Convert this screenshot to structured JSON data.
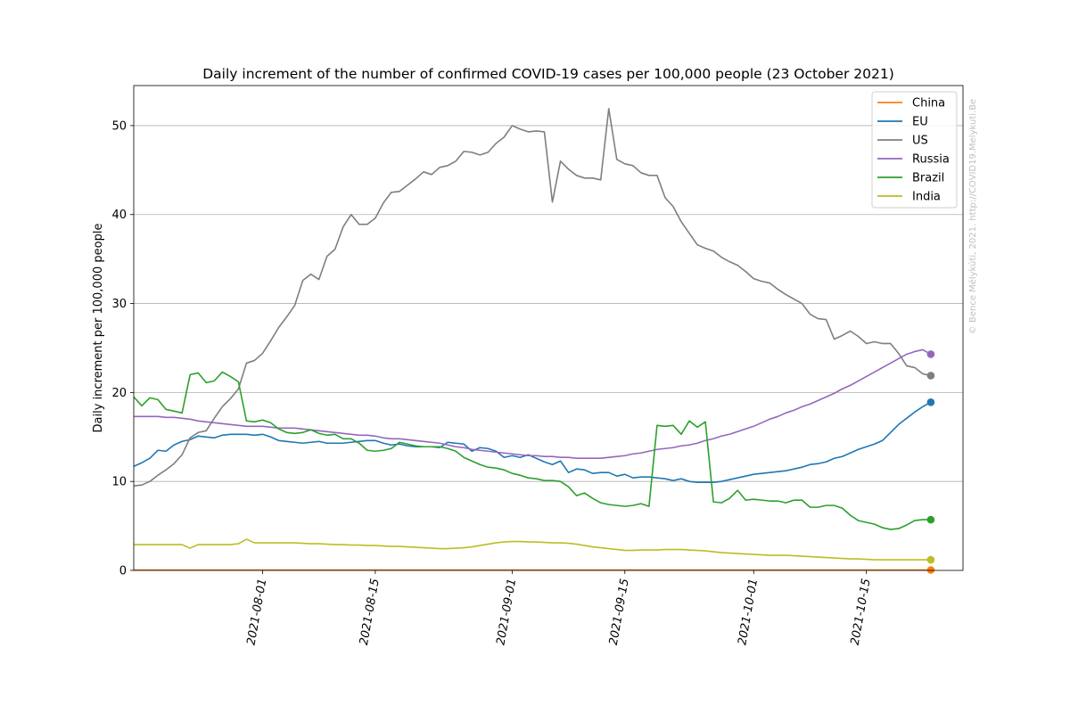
{
  "chart_data": {
    "type": "line",
    "title": "Daily increment of the number of confirmed COVID-19 cases per 100,000 people (23 October 2021)",
    "xlabel": "",
    "ylabel": "Daily increment per 100,000 people",
    "watermark": "© Bence Mélykúti, 2021. http://COVID19.Melykuti.Be",
    "x_start": "2021-07-16",
    "x_end": "2021-10-23",
    "xlim": [
      "2021-07-16",
      "2021-10-27"
    ],
    "ylim": [
      0,
      54.5
    ],
    "x_ticks": [
      "2021-08-01",
      "2021-08-15",
      "2021-09-01",
      "2021-09-15",
      "2021-10-01",
      "2021-10-15"
    ],
    "y_ticks": [
      0,
      10,
      20,
      30,
      40,
      50
    ],
    "grid": "horizontal",
    "legend_position": "top-right",
    "series": [
      {
        "name": "China",
        "color": "#ff7f0e",
        "values": [
          0.05,
          0.05,
          0.05,
          0.05,
          0.05,
          0.05,
          0.05,
          0.05,
          0.05,
          0.05,
          0.05,
          0.05,
          0.05,
          0.05,
          0.05,
          0.05,
          0.05,
          0.05,
          0.05,
          0.05,
          0.05,
          0.05,
          0.05,
          0.05,
          0.05,
          0.05,
          0.05,
          0.05,
          0.05,
          0.05,
          0.05,
          0.05,
          0.05,
          0.05,
          0.05,
          0.05,
          0.05,
          0.05,
          0.05,
          0.05,
          0.05,
          0.05,
          0.05,
          0.05,
          0.05,
          0.05,
          0.05,
          0.05,
          0.05,
          0.05,
          0.05,
          0.05,
          0.05,
          0.05,
          0.05,
          0.05,
          0.05,
          0.05,
          0.05,
          0.05,
          0.05,
          0.05,
          0.05,
          0.05,
          0.05,
          0.05,
          0.05,
          0.05,
          0.05,
          0.05,
          0.05,
          0.05,
          0.05,
          0.05,
          0.05,
          0.05,
          0.05,
          0.05,
          0.05,
          0.05,
          0.05,
          0.05,
          0.05,
          0.05,
          0.05,
          0.05,
          0.05,
          0.05,
          0.05,
          0.05,
          0.05,
          0.05,
          0.05,
          0.05,
          0.05,
          0.05,
          0.05,
          0.05,
          0.05,
          0.05
        ]
      },
      {
        "name": "EU",
        "color": "#1f77b4",
        "values": [
          11.7,
          12.1,
          12.6,
          13.5,
          13.4,
          14.1,
          14.5,
          14.7,
          15.1,
          15.0,
          14.9,
          15.2,
          15.3,
          15.3,
          15.3,
          15.2,
          15.3,
          15.0,
          14.6,
          14.5,
          14.4,
          14.3,
          14.4,
          14.5,
          14.3,
          14.3,
          14.3,
          14.4,
          14.5,
          14.6,
          14.6,
          14.3,
          14.1,
          14.2,
          14.0,
          13.9,
          13.9,
          13.9,
          13.8,
          14.4,
          14.3,
          14.2,
          13.4,
          13.8,
          13.7,
          13.4,
          12.7,
          12.9,
          12.7,
          13.0,
          12.6,
          12.2,
          11.9,
          12.3,
          11.0,
          11.4,
          11.3,
          10.9,
          11.0,
          11.0,
          10.6,
          10.8,
          10.4,
          10.5,
          10.5,
          10.4,
          10.3,
          10.1,
          10.3,
          10.0,
          9.9,
          9.9,
          9.9,
          10.0,
          10.2,
          10.4,
          10.6,
          10.8,
          10.9,
          11.0,
          11.1,
          11.2,
          11.4,
          11.6,
          11.9,
          12.0,
          12.2,
          12.6,
          12.8,
          13.2,
          13.6,
          13.9,
          14.2,
          14.6,
          15.5,
          16.4,
          17.1,
          17.8,
          18.4,
          18.9
        ]
      },
      {
        "name": "US",
        "color": "#7f7f7f",
        "values": [
          9.5,
          9.6,
          10.0,
          10.7,
          11.3,
          12.0,
          13.0,
          14.9,
          15.5,
          15.7,
          17.1,
          18.4,
          19.3,
          20.4,
          23.3,
          23.6,
          24.4,
          25.8,
          27.3,
          28.5,
          29.8,
          32.6,
          33.3,
          32.7,
          35.3,
          36.1,
          38.6,
          40.0,
          38.9,
          38.9,
          39.6,
          41.3,
          42.5,
          42.6,
          43.3,
          44.0,
          44.8,
          44.5,
          45.3,
          45.5,
          46.0,
          47.1,
          47.0,
          46.7,
          47.0,
          48.0,
          48.7,
          50.0,
          49.6,
          49.3,
          49.4,
          49.3,
          41.4,
          46.0,
          45.1,
          44.4,
          44.1,
          44.1,
          43.9,
          51.9,
          46.2,
          45.7,
          45.5,
          44.7,
          44.4,
          44.4,
          41.9,
          40.9,
          39.2,
          37.9,
          36.6,
          36.2,
          35.9,
          35.2,
          34.7,
          34.3,
          33.6,
          32.8,
          32.5,
          32.3,
          31.6,
          31.0,
          30.5,
          30.0,
          28.8,
          28.3,
          28.2,
          26.0,
          26.4,
          26.9,
          26.3,
          25.5,
          25.7,
          25.5,
          25.5,
          24.4,
          23.0,
          22.8,
          22.1,
          21.9
        ]
      },
      {
        "name": "Russia",
        "color": "#9467bd",
        "values": [
          17.3,
          17.3,
          17.3,
          17.3,
          17.2,
          17.2,
          17.1,
          17.0,
          16.8,
          16.7,
          16.6,
          16.5,
          16.4,
          16.3,
          16.2,
          16.2,
          16.2,
          16.1,
          16.0,
          16.0,
          16.0,
          15.9,
          15.8,
          15.7,
          15.6,
          15.5,
          15.4,
          15.3,
          15.2,
          15.2,
          15.1,
          14.9,
          14.8,
          14.8,
          14.7,
          14.6,
          14.5,
          14.4,
          14.3,
          14.1,
          13.9,
          13.8,
          13.6,
          13.5,
          13.4,
          13.3,
          13.2,
          13.1,
          13.0,
          12.9,
          12.9,
          12.8,
          12.8,
          12.7,
          12.7,
          12.6,
          12.6,
          12.6,
          12.6,
          12.7,
          12.8,
          12.9,
          13.1,
          13.2,
          13.4,
          13.6,
          13.7,
          13.8,
          14.0,
          14.1,
          14.3,
          14.6,
          14.8,
          15.1,
          15.3,
          15.6,
          15.9,
          16.2,
          16.6,
          17.0,
          17.3,
          17.7,
          18.0,
          18.4,
          18.7,
          19.1,
          19.5,
          19.9,
          20.4,
          20.8,
          21.3,
          21.8,
          22.3,
          22.8,
          23.3,
          23.8,
          24.3,
          24.6,
          24.8,
          24.3
        ]
      },
      {
        "name": "Brazil",
        "color": "#2ca02c",
        "values": [
          19.5,
          18.5,
          19.4,
          19.2,
          18.1,
          17.9,
          17.7,
          22.0,
          22.2,
          21.1,
          21.3,
          22.3,
          21.8,
          21.2,
          16.8,
          16.7,
          16.9,
          16.6,
          15.9,
          15.5,
          15.4,
          15.5,
          15.8,
          15.4,
          15.2,
          15.3,
          14.8,
          14.8,
          14.3,
          13.5,
          13.4,
          13.5,
          13.7,
          14.4,
          14.2,
          14.0,
          13.9,
          13.9,
          13.9,
          13.7,
          13.4,
          12.7,
          12.3,
          11.9,
          11.6,
          11.5,
          11.3,
          10.9,
          10.7,
          10.4,
          10.3,
          10.1,
          10.1,
          10.0,
          9.4,
          8.4,
          8.7,
          8.1,
          7.6,
          7.4,
          7.3,
          7.2,
          7.3,
          7.5,
          7.2,
          16.3,
          16.2,
          16.3,
          15.3,
          16.8,
          16.1,
          16.7,
          7.7,
          7.6,
          8.1,
          9.0,
          7.9,
          8.0,
          7.9,
          7.8,
          7.8,
          7.6,
          7.9,
          7.9,
          7.1,
          7.1,
          7.3,
          7.3,
          7.0,
          6.2,
          5.6,
          5.4,
          5.2,
          4.8,
          4.6,
          4.7,
          5.1,
          5.6,
          5.7,
          5.7
        ]
      },
      {
        "name": "India",
        "color": "#bcbd22",
        "values": [
          2.9,
          2.9,
          2.9,
          2.9,
          2.9,
          2.9,
          2.9,
          2.5,
          2.9,
          2.9,
          2.9,
          2.9,
          2.9,
          3.0,
          3.5,
          3.1,
          3.1,
          3.1,
          3.1,
          3.1,
          3.1,
          3.05,
          3.0,
          3.0,
          2.95,
          2.9,
          2.9,
          2.85,
          2.85,
          2.8,
          2.8,
          2.75,
          2.7,
          2.7,
          2.65,
          2.6,
          2.55,
          2.5,
          2.45,
          2.45,
          2.5,
          2.55,
          2.65,
          2.8,
          2.95,
          3.1,
          3.2,
          3.25,
          3.25,
          3.2,
          3.2,
          3.15,
          3.1,
          3.1,
          3.05,
          2.95,
          2.8,
          2.65,
          2.55,
          2.45,
          2.35,
          2.25,
          2.25,
          2.3,
          2.3,
          2.3,
          2.35,
          2.35,
          2.35,
          2.3,
          2.25,
          2.2,
          2.1,
          2.0,
          1.95,
          1.9,
          1.85,
          1.8,
          1.75,
          1.7,
          1.7,
          1.7,
          1.65,
          1.6,
          1.55,
          1.5,
          1.45,
          1.4,
          1.35,
          1.3,
          1.3,
          1.25,
          1.2,
          1.2,
          1.2,
          1.2,
          1.2,
          1.2,
          1.2,
          1.2
        ]
      }
    ]
  }
}
